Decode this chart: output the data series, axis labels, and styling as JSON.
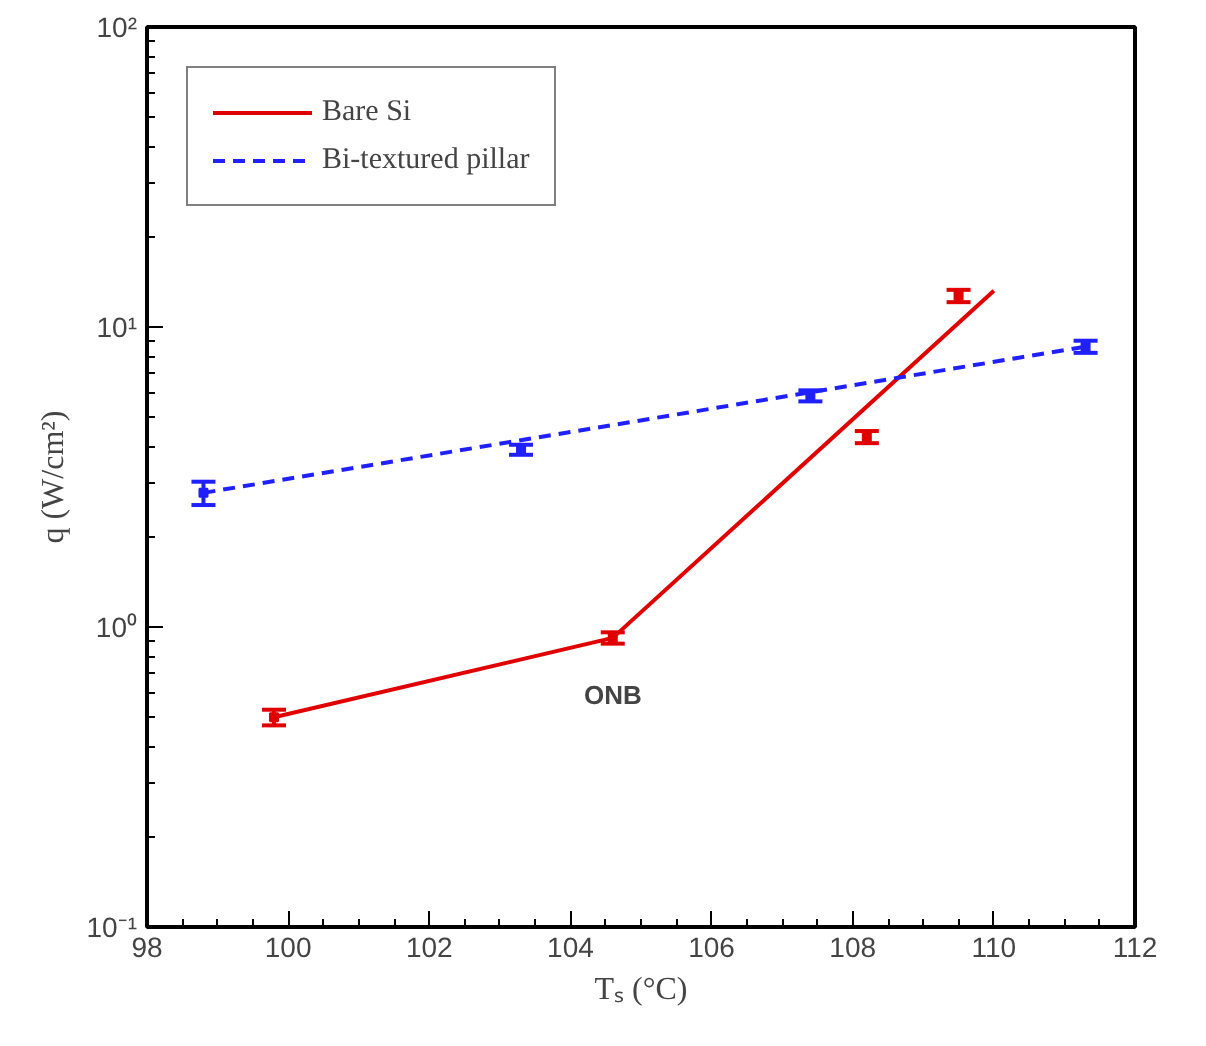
{
  "chart_data": {
    "type": "line",
    "xlabel": "Tₛ (°C)",
    "ylabel": "q (W/cm²)",
    "log": "y",
    "xlim": [
      98,
      112
    ],
    "xticks": [
      98,
      100,
      102,
      104,
      106,
      108,
      110,
      112
    ],
    "ylim": [
      0.1,
      100
    ],
    "yticks": [
      {
        "value": 0.1,
        "label": "10⁻¹"
      },
      {
        "value": 1,
        "label": "10⁰"
      },
      {
        "value": 10,
        "label": "10¹"
      },
      {
        "value": 100,
        "label": "10²"
      }
    ],
    "grid": false,
    "legend": "top left",
    "series": [
      {
        "name": "Bare Si",
        "color": "#e00000",
        "line_style": "solid",
        "x": [
          99.8,
          104.6,
          110.0
        ],
        "values": [
          0.5,
          0.92,
          13.2
        ]
      },
      {
        "name": "Bi-textured pillar",
        "color": "#2020ff",
        "line_style": "dashed",
        "x": [
          98.8,
          111.3
        ],
        "values": [
          2.8,
          8.6
        ]
      },
      {
        "type": "scatter",
        "marker": "square",
        "color": "#e00000",
        "x": [
          99.8,
          104.6,
          108.2,
          109.5
        ],
        "values": [
          0.5,
          0.92,
          4.3,
          12.7
        ],
        "errors": [
          0.03,
          0.04,
          0.2,
          0.6
        ]
      },
      {
        "type": "scatter",
        "marker": "square",
        "color": "#2020ff",
        "x": [
          98.8,
          103.3,
          107.4,
          111.3
        ],
        "values": [
          2.8,
          3.9,
          5.9,
          8.6
        ],
        "errors": [
          0.25,
          0.15,
          0.25,
          0.4
        ]
      }
    ],
    "annotations": [
      "ONB"
    ]
  }
}
